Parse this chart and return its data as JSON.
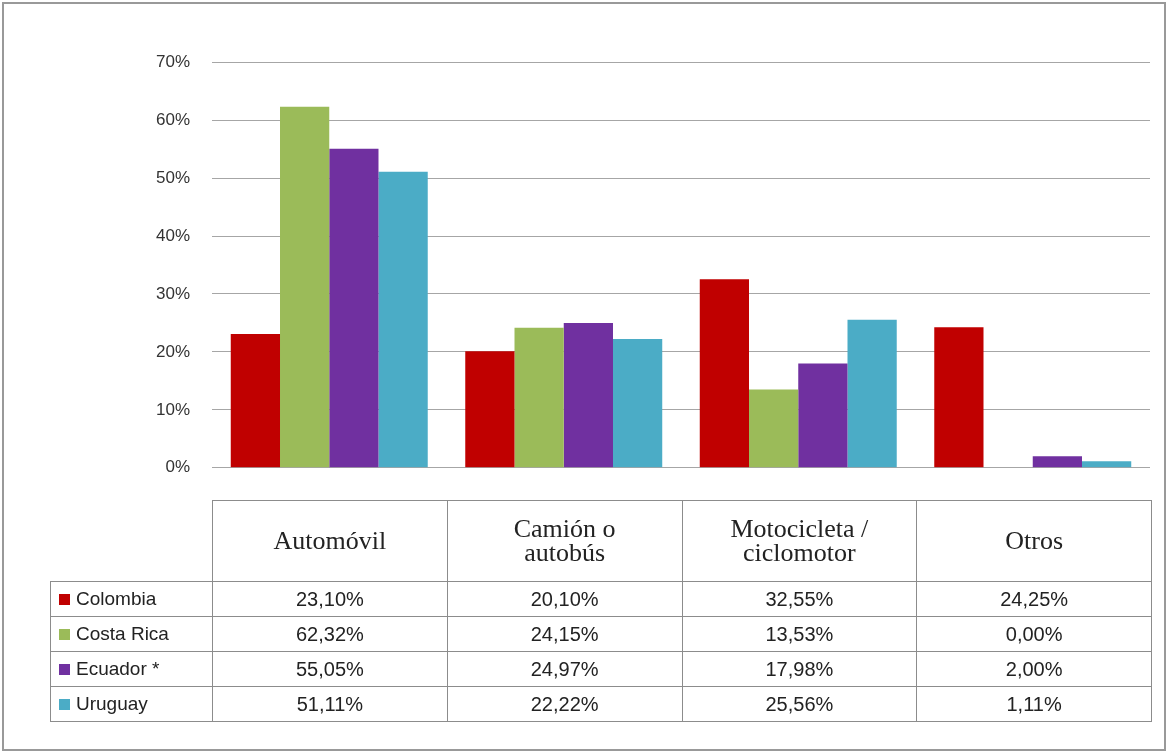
{
  "chart_data": {
    "type": "bar",
    "categories": [
      "Automóvil",
      "Camión o autobús",
      "Motocicleta / ciclomotor",
      "Otros"
    ],
    "series": [
      {
        "name": "Colombia",
        "color": "#c00000",
        "values": [
          23.1,
          20.1,
          32.55,
          24.25
        ],
        "value_labels": [
          "23,10%",
          "20,10%",
          "32,55%",
          "24,25%"
        ]
      },
      {
        "name": "Costa Rica",
        "color": "#9bbb59",
        "values": [
          62.32,
          24.15,
          13.53,
          0.0
        ],
        "value_labels": [
          "62,32%",
          "24,15%",
          "13,53%",
          "0,00%"
        ]
      },
      {
        "name": "Ecuador *",
        "color": "#7030a0",
        "values": [
          55.05,
          24.97,
          17.98,
          2.0
        ],
        "value_labels": [
          "55,05%",
          "24,97%",
          "17,98%",
          "2,00%"
        ]
      },
      {
        "name": "Uruguay",
        "color": "#4bacc6",
        "values": [
          51.11,
          22.22,
          25.56,
          1.11
        ],
        "value_labels": [
          "51,11%",
          "22,22%",
          "25,56%",
          "1,11%"
        ]
      }
    ],
    "ylim": [
      0,
      70
    ],
    "yticks": [
      {
        "value": 0,
        "label": "0%"
      },
      {
        "value": 10,
        "label": "10%"
      },
      {
        "value": 20,
        "label": "20%"
      },
      {
        "value": 30,
        "label": "30%"
      },
      {
        "value": 40,
        "label": "40%"
      },
      {
        "value": 50,
        "label": "50%"
      },
      {
        "value": 60,
        "label": "60%"
      },
      {
        "value": 70,
        "label": "70%"
      }
    ],
    "grid": "y",
    "legend": "bottom left"
  }
}
